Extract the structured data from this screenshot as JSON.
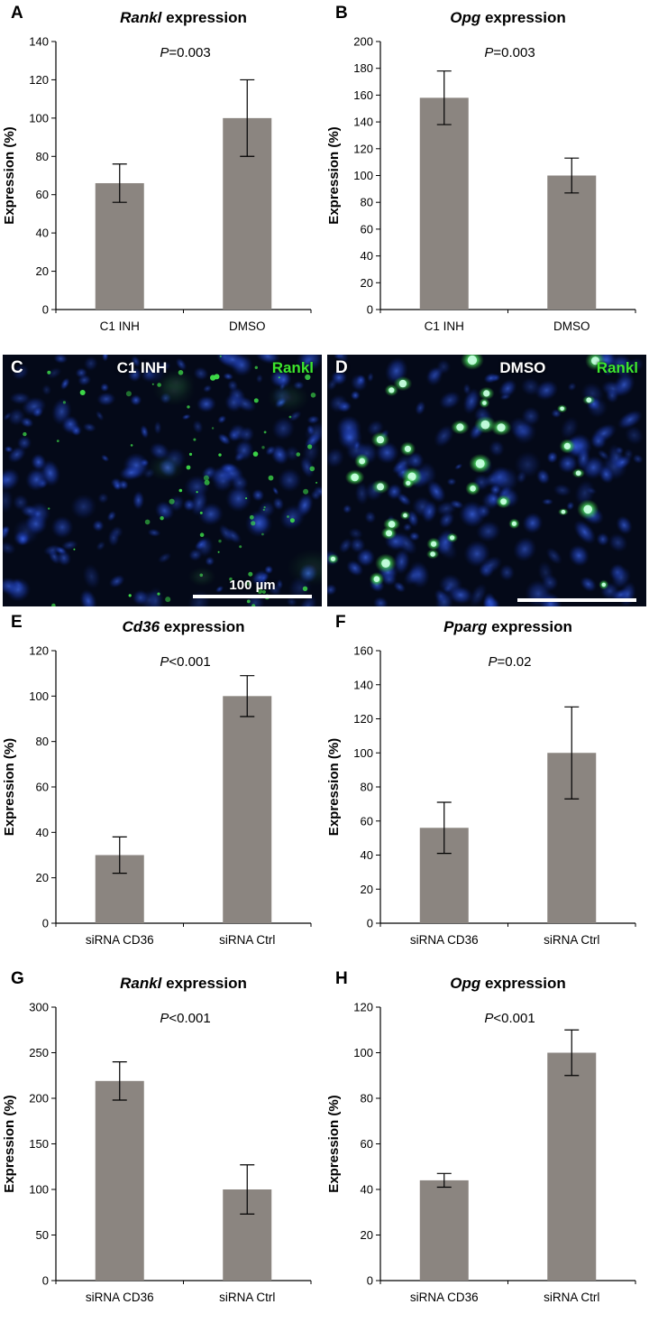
{
  "colors": {
    "bar": "#8b8580",
    "stain_green": "#3ce52e",
    "micro_background": "#040918",
    "axis": "#000000"
  },
  "chart_data": [
    {
      "panel": "A",
      "type": "bar",
      "title": {
        "gene": "Rankl",
        "suffix": "expression"
      },
      "p_label": "P=0.003",
      "categories": [
        "C1 INH",
        "DMSO"
      ],
      "values": [
        66,
        100
      ],
      "errors": [
        10,
        20
      ],
      "ylabel": "Expression (%)",
      "ylim": [
        0,
        140
      ],
      "ytick": 20,
      "grid": false,
      "legend": "none"
    },
    {
      "panel": "B",
      "type": "bar",
      "title": {
        "gene": "Opg",
        "suffix": "expression"
      },
      "p_label": "P=0.003",
      "categories": [
        "C1 INH",
        "DMSO"
      ],
      "values": [
        158,
        100
      ],
      "errors": [
        20,
        13
      ],
      "ylabel": "Expression (%)",
      "ylim": [
        0,
        200
      ],
      "ytick": 20,
      "grid": false,
      "legend": "none"
    },
    {
      "panel": "E",
      "type": "bar",
      "title": {
        "gene": "Cd36",
        "suffix": "expression"
      },
      "p_label": "P<0.001",
      "categories": [
        "siRNA CD36",
        "siRNA Ctrl"
      ],
      "values": [
        30,
        100
      ],
      "errors": [
        8,
        9
      ],
      "ylabel": "Expression (%)",
      "ylim": [
        0,
        120
      ],
      "ytick": 20,
      "grid": false,
      "legend": "none"
    },
    {
      "panel": "F",
      "type": "bar",
      "title": {
        "gene": "Pparg",
        "suffix": "expression"
      },
      "p_label": "P=0.02",
      "categories": [
        "siRNA CD36",
        "siRNA Ctrl"
      ],
      "values": [
        56,
        100
      ],
      "errors": [
        15,
        27
      ],
      "ylabel": "Expression (%)",
      "ylim": [
        0,
        160
      ],
      "ytick": 20,
      "grid": false,
      "legend": "none"
    },
    {
      "panel": "G",
      "type": "bar",
      "title": {
        "gene": "Rankl",
        "suffix": "expression"
      },
      "p_label": "P<0.001",
      "categories": [
        "siRNA CD36",
        "siRNA Ctrl"
      ],
      "values": [
        219,
        100
      ],
      "errors": [
        21,
        27
      ],
      "ylabel": "Expression (%)",
      "ylim": [
        0,
        300
      ],
      "ytick": 50,
      "grid": false,
      "legend": "none"
    },
    {
      "panel": "H",
      "type": "bar",
      "title": {
        "gene": "Opg",
        "suffix": "expression"
      },
      "p_label": "P<0.001",
      "categories": [
        "siRNA CD36",
        "siRNA Ctrl"
      ],
      "values": [
        44,
        100
      ],
      "errors": [
        3,
        10
      ],
      "ylabel": "Expression (%)",
      "ylim": [
        0,
        120
      ],
      "ytick": 20,
      "grid": false,
      "legend": "none"
    }
  ],
  "micrographs": [
    {
      "panel": "C",
      "treatment": "C1 INH",
      "stain_label": "Rankl",
      "scalebar_label": "100 µm",
      "style": "sparse-green"
    },
    {
      "panel": "D",
      "treatment": "DMSO",
      "stain_label": "Rankl",
      "scalebar_label": "",
      "style": "dense-green"
    }
  ]
}
